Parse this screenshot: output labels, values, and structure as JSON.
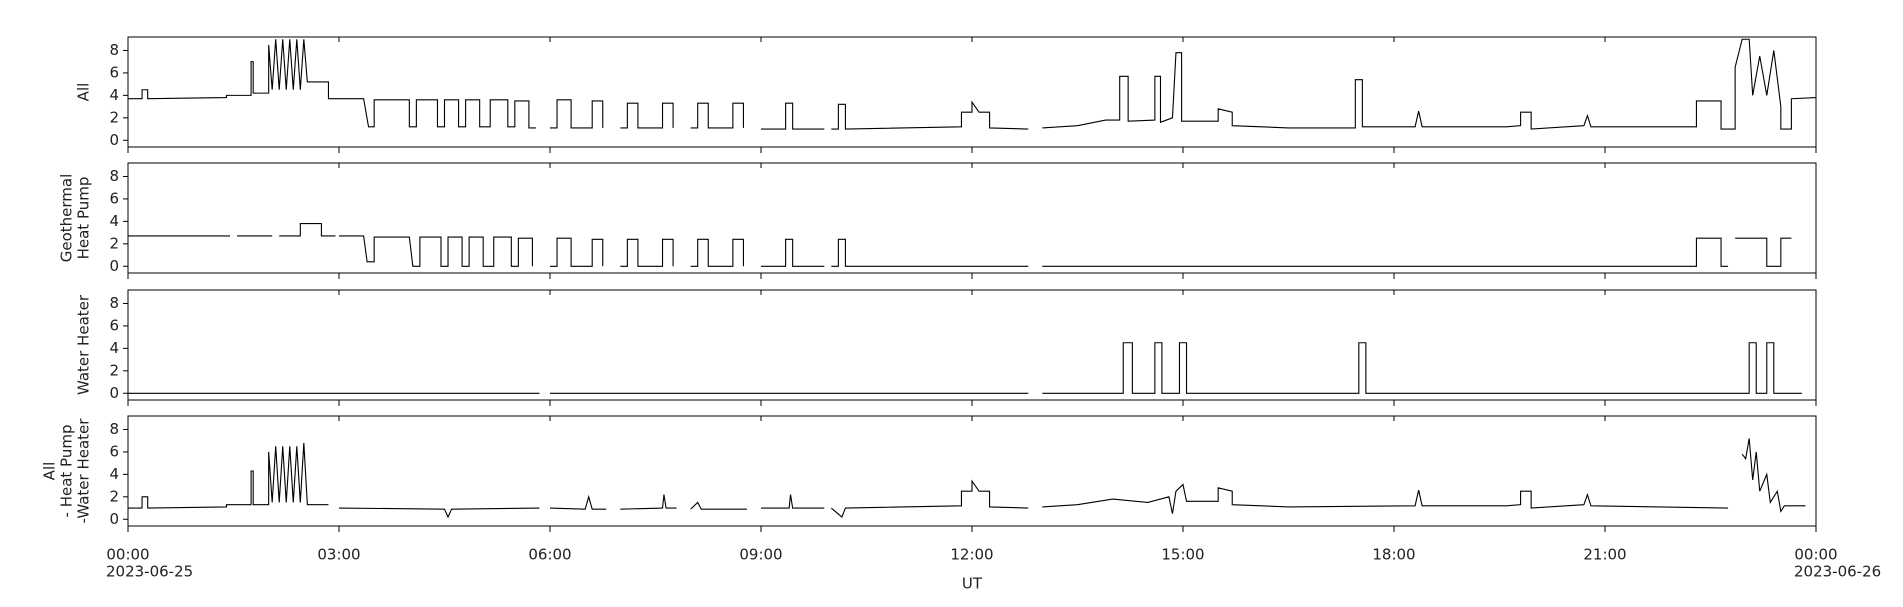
{
  "chart_data": [
    {
      "type": "line",
      "ylabel": [
        "All"
      ],
      "color": "#000000",
      "ylim": [
        -0.6,
        9.2
      ],
      "yticks": [
        0,
        2,
        4,
        6,
        8
      ],
      "x": [
        0,
        0.2,
        0.2,
        0.28,
        0.28,
        1.4,
        1.4,
        1.75,
        1.75,
        1.78,
        1.78,
        2.0,
        2.0,
        2.05,
        2.1,
        2.15,
        2.2,
        2.25,
        2.3,
        2.35,
        2.4,
        2.45,
        2.5,
        2.55,
        2.85,
        2.85,
        3.35,
        3.42,
        3.5,
        3.5,
        4.0,
        4.0,
        4.1,
        4.1,
        4.4,
        4.4,
        4.5,
        4.5,
        4.7,
        4.7,
        4.8,
        4.8,
        5.0,
        5.0,
        5.15,
        5.15,
        5.4,
        5.4,
        5.5,
        5.5,
        5.7,
        5.7,
        5.8,
        5.85,
        6.0,
        6.1,
        6.1,
        6.3,
        6.3,
        6.6,
        6.6,
        6.75,
        6.75,
        6.85,
        7.0,
        7.1,
        7.1,
        7.25,
        7.25,
        7.6,
        7.6,
        7.75,
        7.75,
        7.85,
        8.0,
        8.1,
        8.1,
        8.25,
        8.25,
        8.6,
        8.6,
        8.75,
        8.75,
        8.85,
        9.0,
        9.35,
        9.35,
        9.45,
        9.45,
        9.9,
        9.95,
        10.0,
        10.1,
        10.1,
        10.2,
        10.2,
        11.85,
        11.85,
        12.0,
        12.0,
        12.1,
        12.25,
        12.25,
        12.8,
        12.9,
        13.0,
        13.5,
        13.9,
        14.1,
        14.1,
        14.22,
        14.22,
        14.6,
        14.6,
        14.68,
        14.68,
        14.85,
        14.9,
        14.98,
        14.98,
        15.5,
        15.5,
        15.7,
        15.7,
        16.5,
        17.45,
        17.45,
        17.55,
        17.55,
        18.3,
        18.35,
        18.4,
        19.6,
        19.8,
        19.8,
        19.95,
        19.95,
        20.7,
        20.75,
        20.8,
        22.3,
        22.3,
        22.65,
        22.65,
        22.85,
        22.85,
        22.95,
        23.05,
        23.1,
        23.2,
        23.3,
        23.4,
        23.5,
        23.5,
        23.65,
        23.65,
        24
      ],
      "values": [
        3.7,
        3.7,
        4.5,
        4.5,
        3.7,
        3.8,
        4.0,
        4.0,
        7.0,
        7.0,
        4.2,
        4.2,
        8.5,
        4.5,
        9,
        4.5,
        9,
        4.5,
        9,
        4.5,
        9,
        4.5,
        9,
        5.2,
        5.2,
        3.7,
        3.7,
        1.2,
        1.2,
        3.6,
        3.6,
        1.2,
        1.2,
        3.6,
        3.6,
        1.2,
        1.2,
        3.6,
        3.6,
        1.2,
        1.2,
        3.6,
        3.6,
        1.2,
        1.2,
        3.6,
        3.6,
        1.2,
        1.2,
        3.5,
        3.5,
        1.1,
        1.1,
        null,
        1.1,
        1.1,
        3.6,
        3.6,
        1.1,
        1.1,
        3.5,
        3.5,
        1.1,
        null,
        1.1,
        1.1,
        3.3,
        3.3,
        1.1,
        1.1,
        3.3,
        3.3,
        1.1,
        null,
        1.1,
        1.1,
        3.3,
        3.3,
        1.1,
        1.1,
        3.3,
        3.3,
        1.1,
        null,
        1.0,
        1.0,
        3.3,
        3.3,
        1.0,
        1.0,
        null,
        1.0,
        1.0,
        3.2,
        3.2,
        1.0,
        1.2,
        2.5,
        2.5,
        3.4,
        2.5,
        2.5,
        1.1,
        1.0,
        null,
        1.1,
        1.3,
        1.8,
        1.8,
        5.7,
        5.7,
        1.7,
        1.8,
        5.7,
        5.7,
        1.6,
        2.0,
        7.8,
        7.8,
        1.7,
        1.7,
        2.8,
        2.5,
        1.3,
        1.1,
        1.1,
        5.4,
        5.4,
        1.2,
        1.2,
        2.6,
        1.2,
        1.2,
        1.3,
        2.5,
        2.5,
        1.0,
        1.3,
        2.2,
        1.2,
        1.2,
        3.5,
        3.5,
        1.0,
        1.0,
        6.5,
        9,
        9,
        4,
        7.5,
        4,
        8,
        3,
        1.0,
        1.0,
        3.7,
        3.8
      ]
    },
    {
      "type": "line",
      "ylabel": [
        "Geothermal",
        "Heat Pump"
      ],
      "color": "#000000",
      "ylim": [
        -0.6,
        9.2
      ],
      "yticks": [
        0,
        2,
        4,
        6,
        8
      ],
      "x": [
        0,
        1.45,
        1.5,
        1.55,
        2.05,
        2.1,
        2.15,
        2.45,
        2.45,
        2.75,
        2.75,
        2.95,
        2.98,
        3.0,
        3.35,
        3.4,
        3.5,
        3.5,
        4.0,
        4.05,
        4.15,
        4.15,
        4.45,
        4.45,
        4.55,
        4.55,
        4.75,
        4.75,
        4.85,
        4.85,
        5.05,
        5.05,
        5.2,
        5.2,
        5.45,
        5.45,
        5.55,
        5.55,
        5.75,
        5.75,
        5.85,
        6.0,
        6.1,
        6.1,
        6.3,
        6.3,
        6.6,
        6.6,
        6.75,
        6.75,
        6.85,
        7.0,
        7.1,
        7.1,
        7.25,
        7.25,
        7.6,
        7.6,
        7.75,
        7.75,
        7.85,
        8.0,
        8.1,
        8.1,
        8.25,
        8.25,
        8.6,
        8.6,
        8.75,
        8.75,
        8.85,
        9.0,
        9.35,
        9.35,
        9.45,
        9.45,
        9.9,
        9.95,
        10.0,
        10.1,
        10.1,
        10.2,
        10.2,
        12.8,
        12.9,
        13.0,
        22.3,
        22.3,
        22.65,
        22.65,
        22.75,
        22.8,
        22.85,
        23.3,
        23.3,
        23.5,
        23.5,
        23.65
      ],
      "values": [
        2.7,
        2.7,
        null,
        2.7,
        2.7,
        null,
        2.7,
        2.7,
        3.8,
        3.8,
        2.7,
        2.7,
        null,
        2.7,
        2.7,
        0.4,
        0.4,
        2.6,
        2.6,
        0,
        0,
        2.6,
        2.6,
        0,
        0,
        2.6,
        2.6,
        0,
        0,
        2.6,
        2.6,
        0,
        0,
        2.6,
        2.6,
        0,
        0,
        2.5,
        2.5,
        0,
        null,
        0,
        0,
        2.5,
        2.5,
        0,
        0,
        2.4,
        2.4,
        0,
        null,
        0,
        0,
        2.4,
        2.4,
        0,
        0,
        2.4,
        2.4,
        0,
        null,
        0,
        0,
        2.4,
        2.4,
        0,
        0,
        2.4,
        2.4,
        0,
        null,
        0,
        0,
        2.4,
        2.4,
        0,
        0,
        null,
        0,
        0,
        2.4,
        2.4,
        0,
        0,
        null,
        0,
        0,
        2.5,
        2.5,
        0,
        0,
        null,
        2.5,
        2.5,
        0,
        0,
        2.5,
        2.5
      ]
    },
    {
      "type": "line",
      "ylabel": [
        "Water Heater"
      ],
      "color": "#000000",
      "ylim": [
        -0.6,
        9.2
      ],
      "yticks": [
        0,
        2,
        4,
        6,
        8
      ],
      "x": [
        0,
        5.85,
        5.9,
        6.0,
        12.8,
        12.9,
        13.0,
        14.15,
        14.15,
        14.28,
        14.28,
        14.6,
        14.6,
        14.7,
        14.7,
        14.95,
        14.95,
        15.05,
        15.05,
        17.5,
        17.5,
        17.6,
        17.6,
        23.05,
        23.05,
        23.15,
        23.15,
        23.3,
        23.3,
        23.4,
        23.4,
        23.8
      ],
      "values": [
        0,
        0,
        null,
        0,
        0,
        null,
        0,
        0,
        4.5,
        4.5,
        0,
        0,
        4.5,
        4.5,
        0,
        0,
        4.5,
        4.5,
        0,
        0,
        4.5,
        4.5,
        0,
        0,
        4.5,
        4.5,
        0,
        0,
        4.5,
        4.5,
        0,
        0
      ]
    },
    {
      "type": "line",
      "ylabel": [
        "All",
        " - Heat Pump",
        "-Water Heater"
      ],
      "color": "#000000",
      "ylim": [
        -0.6,
        9.2
      ],
      "yticks": [
        0,
        2,
        4,
        6,
        8
      ],
      "xlabel": "UT",
      "xlim": [
        0,
        24
      ],
      "xticks": [
        {
          "value": 0,
          "label": "00:00"
        },
        {
          "value": 3,
          "label": "03:00"
        },
        {
          "value": 6,
          "label": "06:00"
        },
        {
          "value": 9,
          "label": "09:00"
        },
        {
          "value": 12,
          "label": "12:00"
        },
        {
          "value": 15,
          "label": "15:00"
        },
        {
          "value": 18,
          "label": "18:00"
        },
        {
          "value": 21,
          "label": "21:00"
        },
        {
          "value": 24,
          "label": "00:00"
        }
      ],
      "xtick_dates": [
        {
          "value": 0,
          "label": "2023-06-25"
        },
        {
          "value": 24,
          "label": "2023-06-26"
        }
      ],
      "x": [
        0,
        0.2,
        0.2,
        0.28,
        0.28,
        1.4,
        1.4,
        1.75,
        1.75,
        1.78,
        1.78,
        2.0,
        2.0,
        2.05,
        2.1,
        2.15,
        2.2,
        2.25,
        2.3,
        2.35,
        2.4,
        2.45,
        2.5,
        2.55,
        2.85,
        2.9,
        3.0,
        4.5,
        4.55,
        4.6,
        5.85,
        5.9,
        6.0,
        6.5,
        6.55,
        6.6,
        6.8,
        6.85,
        7.0,
        7.6,
        7.62,
        7.65,
        7.8,
        7.85,
        8.0,
        8.1,
        8.15,
        8.8,
        8.85,
        9.0,
        9.4,
        9.42,
        9.45,
        9.9,
        9.95,
        10.0,
        10.15,
        10.2,
        11.85,
        11.85,
        12.0,
        12.0,
        12.1,
        12.25,
        12.25,
        12.8,
        12.9,
        13.0,
        13.5,
        14.0,
        14.5,
        14.8,
        14.85,
        14.9,
        15.0,
        15.05,
        15.5,
        15.5,
        15.7,
        15.7,
        16.5,
        18.3,
        18.35,
        18.4,
        19.6,
        19.8,
        19.8,
        19.95,
        19.95,
        20.7,
        20.75,
        20.8,
        22.75,
        22.8,
        22.95,
        23.0,
        23.05,
        23.1,
        23.15,
        23.2,
        23.3,
        23.35,
        23.45,
        23.5,
        23.55,
        23.85
      ],
      "values": [
        1.0,
        1.0,
        2.0,
        2.0,
        1.0,
        1.1,
        1.3,
        1.3,
        4.3,
        4.3,
        1.3,
        1.3,
        6.0,
        1.5,
        6.5,
        1.5,
        6.5,
        1.5,
        6.5,
        1.5,
        6.5,
        1.5,
        6.8,
        1.3,
        1.3,
        null,
        1.0,
        0.9,
        0.2,
        0.9,
        1.0,
        null,
        1.0,
        0.9,
        2.0,
        0.9,
        0.9,
        null,
        0.9,
        1.0,
        2.2,
        1.0,
        1.0,
        null,
        0.9,
        1.5,
        0.9,
        0.9,
        null,
        1.0,
        1.0,
        2.2,
        1.0,
        1.0,
        null,
        1.0,
        0.2,
        1.0,
        1.2,
        2.5,
        2.5,
        3.4,
        2.5,
        2.5,
        1.1,
        1.0,
        null,
        1.1,
        1.3,
        1.8,
        1.5,
        2.0,
        0.5,
        2.5,
        3.1,
        1.6,
        1.6,
        2.8,
        2.5,
        1.3,
        1.1,
        1.2,
        2.6,
        1.2,
        1.2,
        1.3,
        2.5,
        2.5,
        1.0,
        1.3,
        2.2,
        1.2,
        1.0,
        null,
        5.8,
        5.4,
        7.2,
        3.5,
        6,
        2.5,
        4,
        1.5,
        2.5,
        0.7,
        1.2,
        1.2
      ]
    }
  ]
}
